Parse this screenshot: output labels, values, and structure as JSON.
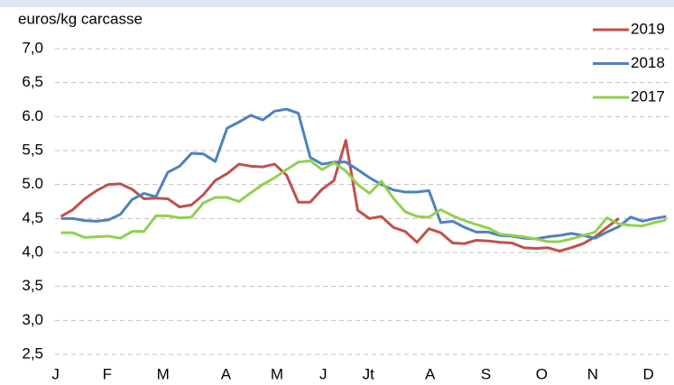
{
  "chart_data": {
    "type": "line",
    "y_label": "euros/kg carcasse",
    "x": [
      1,
      2,
      3,
      4,
      5,
      6,
      7,
      8,
      9,
      10,
      11,
      12,
      13,
      14,
      15,
      16,
      17,
      18,
      19,
      20,
      21,
      22,
      23,
      24,
      25,
      26,
      27,
      28,
      29,
      30,
      31,
      32,
      33,
      34,
      35,
      36,
      37,
      38,
      39,
      40,
      41,
      42,
      43,
      44,
      45,
      46,
      47,
      48,
      49,
      50,
      51,
      52
    ],
    "xlim": [
      0.5,
      52.5
    ],
    "xticks": [
      {
        "value": 0.55,
        "label": "J"
      },
      {
        "value": 4.9,
        "label": "F"
      },
      {
        "value": 9.6,
        "label": "M"
      },
      {
        "value": 14.9,
        "label": "A"
      },
      {
        "value": 19.2,
        "label": "M"
      },
      {
        "value": 23.1,
        "label": "J"
      },
      {
        "value": 26.9,
        "label": "Jt"
      },
      {
        "value": 32.1,
        "label": "A"
      },
      {
        "value": 36.8,
        "label": "S"
      },
      {
        "value": 41.5,
        "label": "O"
      },
      {
        "value": 45.8,
        "label": "N"
      },
      {
        "value": 50.5,
        "label": "D"
      }
    ],
    "ylim": [
      2.5,
      7.0
    ],
    "yticks": [
      {
        "value": 2.5,
        "label": "2,5"
      },
      {
        "value": 3.0,
        "label": "3,0"
      },
      {
        "value": 3.5,
        "label": "3,5"
      },
      {
        "value": 4.0,
        "label": "4,0"
      },
      {
        "value": 4.5,
        "label": "4,5"
      },
      {
        "value": 5.0,
        "label": "5.0"
      },
      {
        "value": 5.5,
        "label": "5,5"
      },
      {
        "value": 6.0,
        "label": "6.0"
      },
      {
        "value": 6.5,
        "label": "6,5"
      },
      {
        "value": 7.0,
        "label": "7,0"
      }
    ],
    "grid": true,
    "legend": "upper right",
    "series": [
      {
        "name": "2019",
        "color": "#c0504d",
        "values": [
          4.53,
          4.63,
          4.79,
          4.91,
          5.0,
          5.01,
          4.93,
          4.79,
          4.8,
          4.79,
          4.67,
          4.7,
          4.85,
          5.06,
          5.16,
          5.3,
          5.27,
          5.26,
          5.3,
          5.14,
          4.74,
          4.74,
          4.93,
          5.06,
          5.65,
          4.62,
          4.5,
          4.53,
          4.37,
          4.31,
          4.15,
          4.35,
          4.29,
          4.14,
          4.13,
          4.18,
          4.17,
          4.15,
          4.14,
          4.07,
          4.06,
          4.07,
          4.02,
          4.07,
          4.13,
          4.23,
          4.37,
          4.5,
          null,
          null,
          null,
          null
        ]
      },
      {
        "name": "2018",
        "color": "#4f81bd",
        "values": [
          4.5,
          4.5,
          4.47,
          4.46,
          4.48,
          4.56,
          4.78,
          4.87,
          4.82,
          5.18,
          5.27,
          5.46,
          5.45,
          5.34,
          5.83,
          5.92,
          6.02,
          5.95,
          6.08,
          6.11,
          6.05,
          5.4,
          5.3,
          5.33,
          5.33,
          5.22,
          5.1,
          5.0,
          4.92,
          4.89,
          4.89,
          4.91,
          4.44,
          4.46,
          4.37,
          4.3,
          4.3,
          4.25,
          4.24,
          4.21,
          4.2,
          4.23,
          4.25,
          4.28,
          4.25,
          4.21,
          4.3,
          4.38,
          4.52,
          4.46,
          4.5,
          4.53
        ]
      },
      {
        "name": "2017",
        "color": "#92d050",
        "values": [
          4.29,
          4.29,
          4.22,
          4.23,
          4.24,
          4.21,
          4.31,
          4.31,
          4.54,
          4.54,
          4.51,
          4.52,
          4.73,
          4.81,
          4.81,
          4.75,
          4.88,
          5.0,
          5.1,
          5.22,
          5.33,
          5.35,
          5.22,
          5.32,
          5.2,
          5.0,
          4.87,
          5.05,
          4.8,
          4.6,
          4.53,
          4.52,
          4.63,
          4.54,
          4.47,
          4.41,
          4.36,
          4.27,
          4.25,
          4.23,
          4.2,
          4.16,
          4.16,
          4.2,
          4.25,
          4.3,
          4.51,
          4.42,
          4.4,
          4.39,
          4.44,
          4.48
        ]
      }
    ]
  }
}
